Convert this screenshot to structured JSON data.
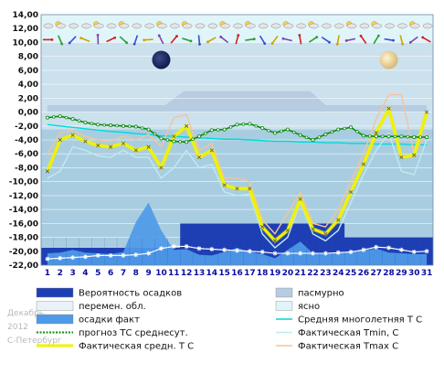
{
  "chart_data": {
    "type": "line",
    "caption": {
      "month": "Декабрь",
      "year": "2012",
      "city": "С-Петербург"
    },
    "ylim": [
      -22,
      14
    ],
    "yticks": [
      "14,00",
      "12,00",
      "10,00",
      "8,00",
      "6,00",
      "4,00",
      "2,00",
      "0,00",
      "-2,00",
      "-4,00",
      "-6,00",
      "-8,00",
      "-10,00",
      "-12,00",
      "-14,00",
      "-16,00",
      "-18,00",
      "-20,00",
      "-22,00"
    ],
    "x": [
      1,
      2,
      3,
      4,
      5,
      6,
      7,
      8,
      9,
      10,
      11,
      12,
      13,
      14,
      15,
      16,
      17,
      18,
      19,
      20,
      21,
      22,
      23,
      24,
      25,
      26,
      27,
      28,
      29,
      30,
      31
    ],
    "xtick_labels": [
      "1",
      "2",
      "3",
      "4",
      "5",
      "6",
      "7",
      "8",
      "9",
      "10",
      "11",
      "12",
      "13",
      "14",
      "15",
      "16",
      "17",
      "18",
      "19",
      "20",
      "21",
      "22",
      "23",
      "24",
      "25",
      "26",
      "27",
      "28",
      "29",
      "30",
      "31"
    ],
    "grid": true,
    "background_colors": {
      "plot": "#a9cde0",
      "clear": "#dff5fa",
      "partly": "#e8f2f8",
      "overcast": "#b7cce0"
    },
    "sky_bands": {
      "partly_range": [
        -2.5,
        10
      ],
      "overcast_range": [
        0,
        3
      ],
      "overcast_profile": [
        [
          1,
          1
        ],
        [
          10.3,
          1
        ],
        [
          11.8,
          3
        ],
        [
          21.8,
          3
        ],
        [
          23,
          1
        ],
        [
          31,
          1
        ]
      ]
    },
    "precip_probability": {
      "values_c": [
        -19.5,
        -19.5,
        -19.5,
        -19.5,
        -19.5,
        -19.5,
        -19.5,
        -19.5,
        -19.5,
        -19.5,
        -19.5,
        -16,
        -16,
        -16,
        -16,
        -16,
        -16,
        -16,
        -16,
        -16,
        -16,
        -16,
        -16,
        -16,
        -18,
        -18,
        -18,
        -18,
        -18,
        -18,
        -18
      ]
    },
    "precip_fact": {
      "values_c": [
        -20.3,
        -20.2,
        -19.8,
        -20.2,
        -20.3,
        -20.4,
        -20.1,
        -15.8,
        -13,
        -17,
        -19.8,
        -19.7,
        -20.5,
        -20.6,
        -20.1,
        -19.5,
        -20.1,
        -20.4,
        -21,
        -19.8,
        -18.6,
        -20.3,
        -20.4,
        -20.2,
        -20.1,
        -19.9,
        -19.6,
        -20.2,
        -20.3,
        -20.4,
        -20.4
      ]
    },
    "series": [
      {
        "name": "Средняя многолетняя Т С",
        "color": "#00dada",
        "width": 1.4,
        "values": [
          -1.8,
          -2,
          -2.2,
          -2.4,
          -2.6,
          -2.8,
          -2.9,
          -3.1,
          -3.2,
          -3.4,
          -3.5,
          -3.6,
          -3.7,
          -3.8,
          -3.9,
          -3.9,
          -4,
          -4.1,
          -4.2,
          -4.2,
          -4.3,
          -4.3,
          -4.4,
          -4.4,
          -4.5,
          -4.5,
          -4.6,
          -4.6,
          -4.6,
          -4.7,
          -4.7
        ]
      },
      {
        "name": "Фактическая Tmin, С",
        "color": "#bfeaf2",
        "width": 1.4,
        "values": [
          -9.5,
          -8.5,
          -5,
          -5.5,
          -6.3,
          -6.5,
          -5.5,
          -6.5,
          -6.5,
          -9.5,
          -8,
          -5.5,
          -8,
          -7.5,
          -11.5,
          -12,
          -11.8,
          -17.5,
          -19.5,
          -18,
          -13,
          -17.5,
          -18.5,
          -17,
          -13,
          -9,
          -5.5,
          -3,
          -8.5,
          -9,
          -4
        ]
      },
      {
        "name": "Фактическая Tmax С",
        "color": "#f4c49c",
        "width": 1.4,
        "values": [
          -6,
          -3,
          -2.6,
          -3.5,
          -4,
          -4.2,
          -3.5,
          -4,
          -3.2,
          -5,
          -0.8,
          -0.4,
          -5.5,
          -4.5,
          -9.5,
          -9.5,
          -10,
          -15.5,
          -17.5,
          -14.5,
          -11.5,
          -16,
          -16.5,
          -14,
          -10,
          -6,
          -1,
          2.5,
          2.5,
          -6,
          -3
        ]
      },
      {
        "name": "Фактическая средн. Т С",
        "color": "#f2f200",
        "width": 3,
        "marker": "cross",
        "values": [
          -8.5,
          -4,
          -3.3,
          -4.2,
          -4.8,
          -5,
          -4.5,
          -5.5,
          -5,
          -8,
          -3.5,
          -2,
          -6.5,
          -5.5,
          -10.5,
          -11,
          -11,
          -16.5,
          -18.5,
          -17,
          -12.5,
          -16.8,
          -17.5,
          -15.5,
          -11.5,
          -7.5,
          -3,
          0.5,
          -6.5,
          -6.2,
          0
        ]
      },
      {
        "name": "прогноз ТС среднесут.",
        "color": "#0c8a0c",
        "width": 1.6,
        "marker": "dotted-circle",
        "values": [
          -0.8,
          -0.6,
          -1,
          -1.5,
          -1.8,
          -1.9,
          -2,
          -2.1,
          -2.5,
          -3.8,
          -4.2,
          -4.3,
          -3.5,
          -2.6,
          -2.5,
          -1.8,
          -1.7,
          -2.3,
          -3,
          -2.5,
          -3.3,
          -4,
          -3.2,
          -2.5,
          -2.2,
          -3.4,
          -3.5,
          -3.5,
          -3.5,
          -3.6,
          -3.6
        ]
      }
    ],
    "precip_fact_line": {
      "color": "#ffffff",
      "marker": "star",
      "values": [
        -21.1,
        -21,
        -20.9,
        -20.8,
        -20.6,
        -20.6,
        -20.6,
        -20.5,
        -20.3,
        -19.6,
        -19.3,
        -19.3,
        -19.6,
        -19.7,
        -19.8,
        -19.9,
        -20,
        -20.1,
        -20.3,
        -20.3,
        -20.3,
        -20.3,
        -20.3,
        -20.2,
        -20.1,
        -19.8,
        -19.4,
        -19.5,
        -19.8,
        -20.1,
        -20
      ]
    },
    "icons": {
      "moon_dark_day": 10,
      "moon_full_day": 28,
      "weather_strip": [
        "cloudy-icon",
        "partly-sunny-icon",
        "rain-icon",
        "snow-icon",
        "sun-icon"
      ],
      "wind_arrows": "wind-arrow-icon"
    },
    "legend": {
      "placement": "bottom",
      "items": [
        {
          "key": "prob",
          "label": "Вероятность осадков",
          "swatch": "fill",
          "color": "#1e3fb4"
        },
        {
          "key": "overcast",
          "label": "пасмурно",
          "swatch": "fill",
          "color": "#b7cce0"
        },
        {
          "key": "partly",
          "label": "перемен. обл.",
          "swatch": "fill",
          "color": "#e8f2f8"
        },
        {
          "key": "clear",
          "label": "ясно",
          "swatch": "fill",
          "color": "#dff5fa"
        },
        {
          "key": "fact",
          "label": "осадки факт",
          "swatch": "fill",
          "color": "#4f9ae8"
        },
        {
          "key": "mean",
          "label": "Средняя многолетняя Т С",
          "swatch": "line",
          "color": "#00dada"
        },
        {
          "key": "forecast",
          "label": "прогноз ТС среднесут.",
          "swatch": "dotted-line",
          "color": "#0c8a0c"
        },
        {
          "key": "tmin",
          "label": "Фактическая Tmin, С",
          "swatch": "line",
          "color": "#bfeaf2"
        },
        {
          "key": "avg",
          "label": "Фактическая средн. Т С",
          "swatch": "thick-line",
          "color": "#f2f200"
        },
        {
          "key": "tmax",
          "label": "Фактическая Tmax С",
          "swatch": "line",
          "color": "#f4c49c"
        }
      ]
    }
  }
}
